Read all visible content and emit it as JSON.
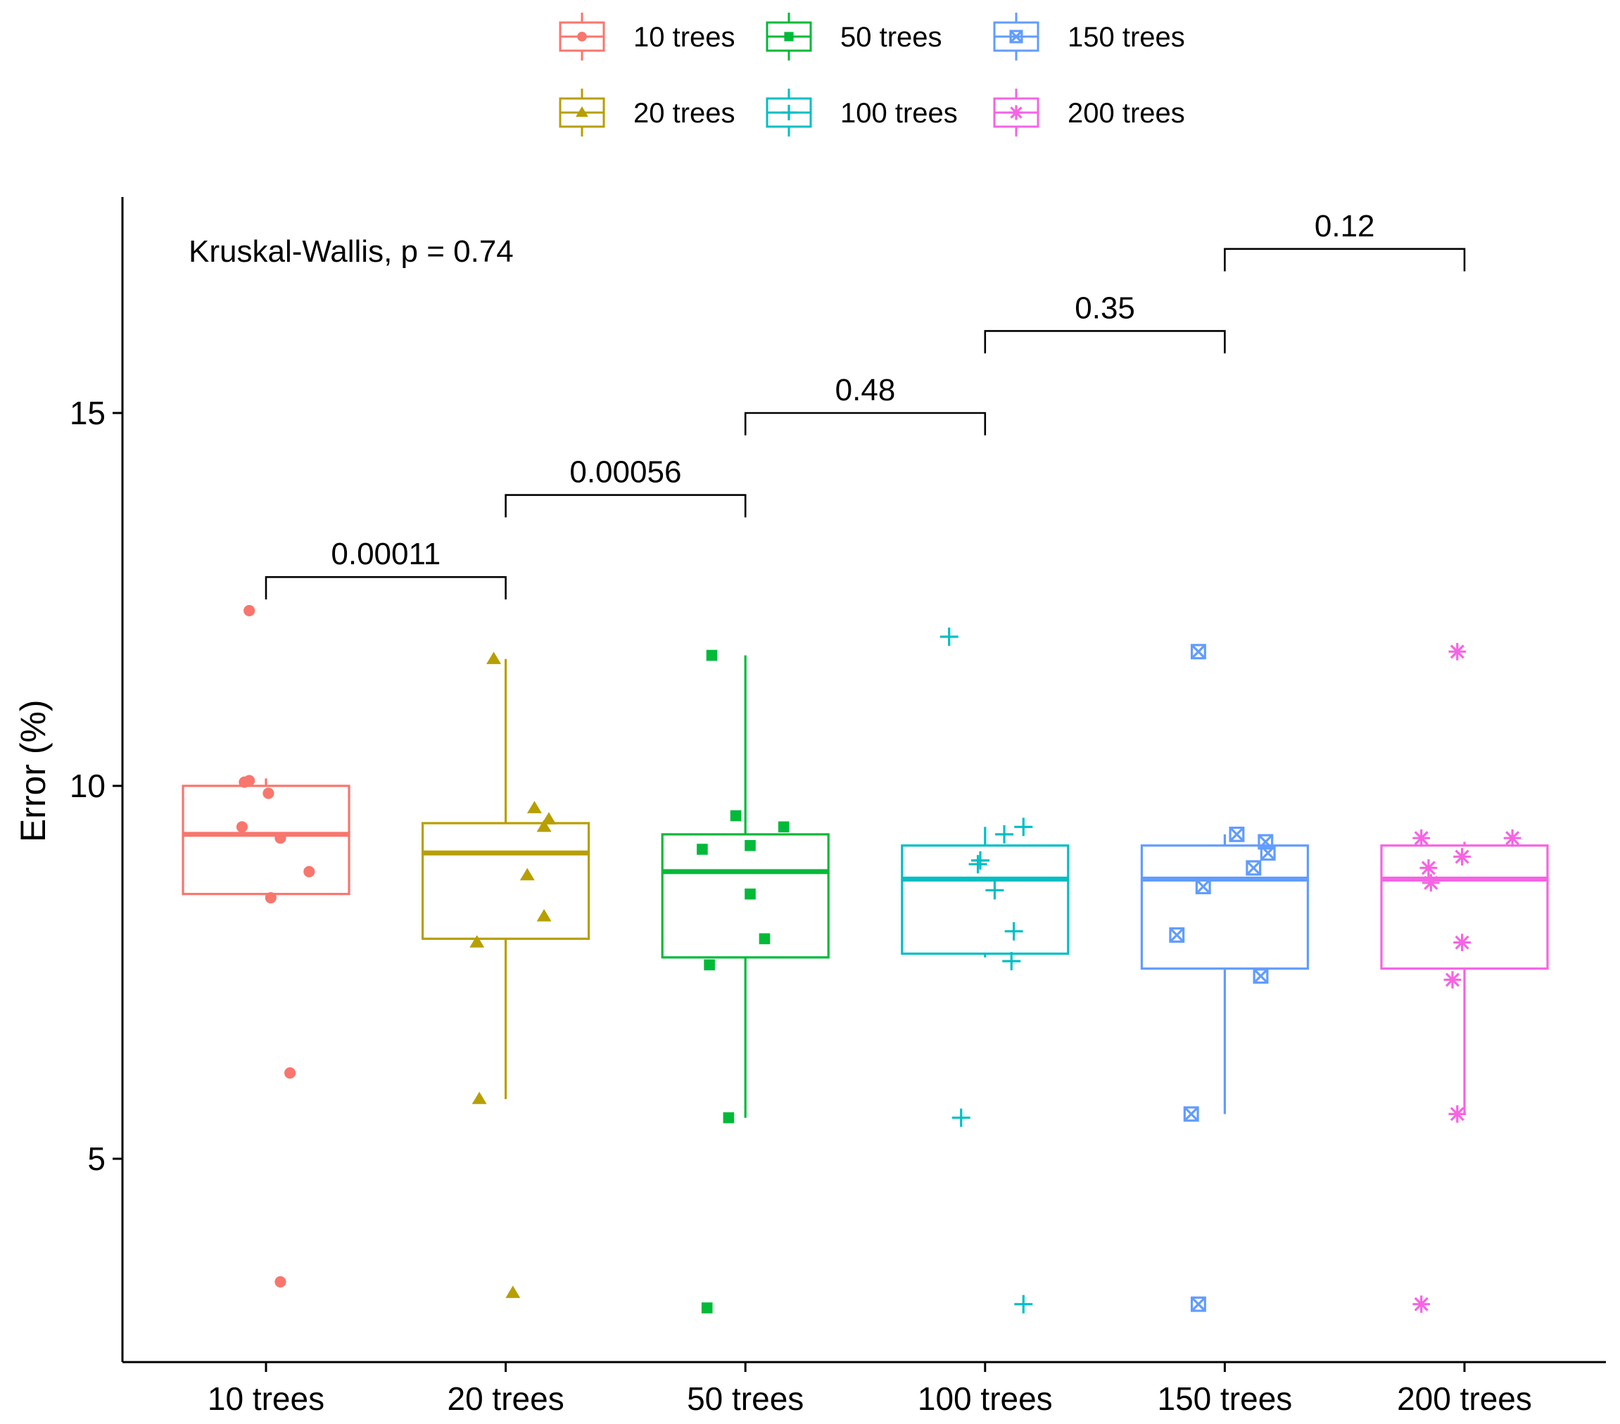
{
  "chart_data": {
    "type": "boxplot",
    "title": "",
    "xlabel": "",
    "ylabel": "Error (%)",
    "ylim": [
      2.7,
      17.6
    ],
    "yticks": [
      5,
      10,
      15
    ],
    "grid": false,
    "legend_position": "top",
    "annotation": "Kruskal-Wallis, p = 0.74",
    "categories": [
      "10 trees",
      "20 trees",
      "50 trees",
      "100 trees",
      "150 trees",
      "200 trees"
    ],
    "colors": [
      "#F8766D",
      "#B79F00",
      "#00BA38",
      "#00BFC4",
      "#619CFF",
      "#F564E3"
    ],
    "shapes": [
      "circle",
      "triangle",
      "square",
      "plus",
      "boxed-x",
      "asterisk"
    ],
    "legend": [
      {
        "label": "10 trees",
        "row": 0,
        "col": 0
      },
      {
        "label": "50 trees",
        "row": 0,
        "col": 1
      },
      {
        "label": "150 trees",
        "row": 0,
        "col": 2
      },
      {
        "label": "20 trees",
        "row": 1,
        "col": 0
      },
      {
        "label": "100 trees",
        "row": 1,
        "col": 1
      },
      {
        "label": "200 trees",
        "row": 1,
        "col": 2
      }
    ],
    "boxes": [
      {
        "category": "10 trees",
        "q1": 8.55,
        "median": 9.35,
        "q3": 10.0,
        "whisker_low": 8.55,
        "whisker_high": 10.1
      },
      {
        "category": "20 trees",
        "q1": 7.95,
        "median": 9.1,
        "q3": 9.5,
        "whisker_low": 5.8,
        "whisker_high": 11.7
      },
      {
        "category": "50 trees",
        "q1": 7.7,
        "median": 8.85,
        "q3": 9.35,
        "whisker_low": 5.55,
        "whisker_high": 11.75
      },
      {
        "category": "100 trees",
        "q1": 7.75,
        "median": 8.75,
        "q3": 9.2,
        "whisker_low": 7.7,
        "whisker_high": 9.45
      },
      {
        "category": "150 trees",
        "q1": 7.55,
        "median": 8.75,
        "q3": 9.2,
        "whisker_low": 5.6,
        "whisker_high": 9.35
      },
      {
        "category": "200 trees",
        "q1": 7.55,
        "median": 8.75,
        "q3": 9.2,
        "whisker_low": 5.6,
        "whisker_high": 9.25
      }
    ],
    "points": [
      [
        {
          "dx": -0.07,
          "y": 12.35
        },
        {
          "dx": -0.09,
          "y": 10.05
        },
        {
          "dx": -0.07,
          "y": 10.07
        },
        {
          "dx": 0.01,
          "y": 9.9
        },
        {
          "dx": -0.1,
          "y": 9.45
        },
        {
          "dx": 0.06,
          "y": 9.3
        },
        {
          "dx": 0.18,
          "y": 8.85
        },
        {
          "dx": 0.02,
          "y": 8.5
        },
        {
          "dx": 0.1,
          "y": 6.15
        },
        {
          "dx": 0.06,
          "y": 3.35
        }
      ],
      [
        {
          "dx": -0.05,
          "y": 11.7
        },
        {
          "dx": 0.12,
          "y": 9.7
        },
        {
          "dx": 0.18,
          "y": 9.55
        },
        {
          "dx": 0.16,
          "y": 9.45
        },
        {
          "dx": 0.09,
          "y": 8.8
        },
        {
          "dx": 0.16,
          "y": 8.25
        },
        {
          "dx": -0.12,
          "y": 7.9
        },
        {
          "dx": -0.11,
          "y": 5.8
        },
        {
          "dx": 0.03,
          "y": 3.2
        }
      ],
      [
        {
          "dx": -0.14,
          "y": 11.75
        },
        {
          "dx": -0.04,
          "y": 9.6
        },
        {
          "dx": 0.16,
          "y": 9.45
        },
        {
          "dx": -0.18,
          "y": 9.15
        },
        {
          "dx": 0.02,
          "y": 9.2
        },
        {
          "dx": 0.02,
          "y": 8.55
        },
        {
          "dx": 0.08,
          "y": 7.95
        },
        {
          "dx": -0.15,
          "y": 7.6
        },
        {
          "dx": -0.07,
          "y": 5.55
        },
        {
          "dx": -0.16,
          "y": 3.0
        }
      ],
      [
        {
          "dx": -0.15,
          "y": 12.0
        },
        {
          "dx": 0.16,
          "y": 9.45
        },
        {
          "dx": 0.08,
          "y": 9.35
        },
        {
          "dx": -0.02,
          "y": 9.0
        },
        {
          "dx": -0.03,
          "y": 8.95
        },
        {
          "dx": 0.04,
          "y": 8.6
        },
        {
          "dx": 0.12,
          "y": 8.05
        },
        {
          "dx": 0.11,
          "y": 7.65
        },
        {
          "dx": -0.1,
          "y": 5.55
        },
        {
          "dx": 0.16,
          "y": 3.05
        }
      ],
      [
        {
          "dx": -0.11,
          "y": 11.8
        },
        {
          "dx": 0.05,
          "y": 9.35
        },
        {
          "dx": 0.17,
          "y": 9.25
        },
        {
          "dx": 0.18,
          "y": 9.1
        },
        {
          "dx": 0.12,
          "y": 8.9
        },
        {
          "dx": -0.09,
          "y": 8.65
        },
        {
          "dx": -0.2,
          "y": 8.0
        },
        {
          "dx": 0.15,
          "y": 7.45
        },
        {
          "dx": -0.14,
          "y": 5.6
        },
        {
          "dx": -0.11,
          "y": 3.05
        }
      ],
      [
        {
          "dx": -0.03,
          "y": 11.8
        },
        {
          "dx": -0.18,
          "y": 9.3
        },
        {
          "dx": 0.2,
          "y": 9.3
        },
        {
          "dx": -0.15,
          "y": 8.9
        },
        {
          "dx": -0.01,
          "y": 9.05
        },
        {
          "dx": -0.14,
          "y": 8.7
        },
        {
          "dx": -0.01,
          "y": 7.9
        },
        {
          "dx": -0.05,
          "y": 7.4
        },
        {
          "dx": -0.03,
          "y": 5.6
        },
        {
          "dx": -0.18,
          "y": 3.05
        }
      ]
    ],
    "comparisons": [
      {
        "from": "10 trees",
        "to": "20 trees",
        "label": "0.00011",
        "y": 12.8,
        "tip": 0.3
      },
      {
        "from": "20 trees",
        "to": "50 trees",
        "label": "0.00056",
        "y": 13.9,
        "tip": 0.3
      },
      {
        "from": "50 trees",
        "to": "100 trees",
        "label": "0.48",
        "y": 15.0,
        "tip": 0.3
      },
      {
        "from": "100 trees",
        "to": "150 trees",
        "label": "0.35",
        "y": 16.1,
        "tip": 0.3
      },
      {
        "from": "150 trees",
        "to": "200 trees",
        "label": "0.12",
        "y": 17.2,
        "tip": 0.3
      }
    ]
  }
}
